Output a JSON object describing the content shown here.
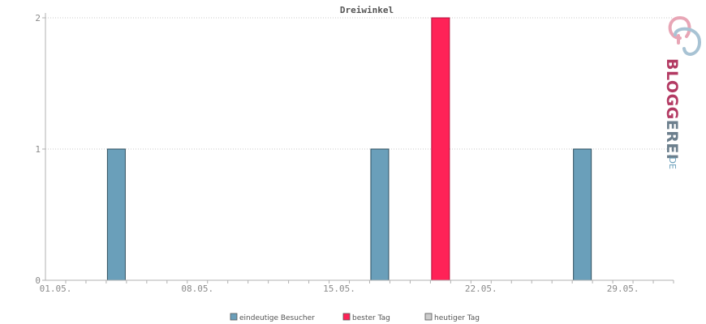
{
  "chart_data": {
    "type": "bar",
    "title": "Dreiwinkel",
    "xlabel": "",
    "ylabel": "",
    "x_tick_labels": [
      "01.05.",
      "08.05.",
      "15.05.",
      "22.05.",
      "29.05."
    ],
    "x_tick_days": [
      1,
      8,
      15,
      22,
      29
    ],
    "xlim": [
      0,
      31
    ],
    "ylim": [
      0,
      2
    ],
    "y_ticks": [
      0,
      1,
      2
    ],
    "grid": true,
    "series": [
      {
        "name": "eindeutige Besucher",
        "color": "#6a9fba",
        "points": [
          {
            "day": 4,
            "value": 1
          },
          {
            "day": 17,
            "value": 1
          },
          {
            "day": 27,
            "value": 1
          }
        ]
      },
      {
        "name": "bester Tag",
        "color": "#ff2257",
        "points": [
          {
            "day": 20,
            "value": 2
          }
        ]
      },
      {
        "name": "heutiger Tag",
        "color": "#cccccc",
        "points": []
      }
    ],
    "legend_position": "bottom"
  },
  "logo": {
    "text_pink": "BLOGG",
    "text_gray": "EREI",
    "suffix": ".DE",
    "colors": {
      "pink": "#b33a63",
      "gray": "#6c7f8d",
      "blue": "#6a9fba"
    }
  }
}
